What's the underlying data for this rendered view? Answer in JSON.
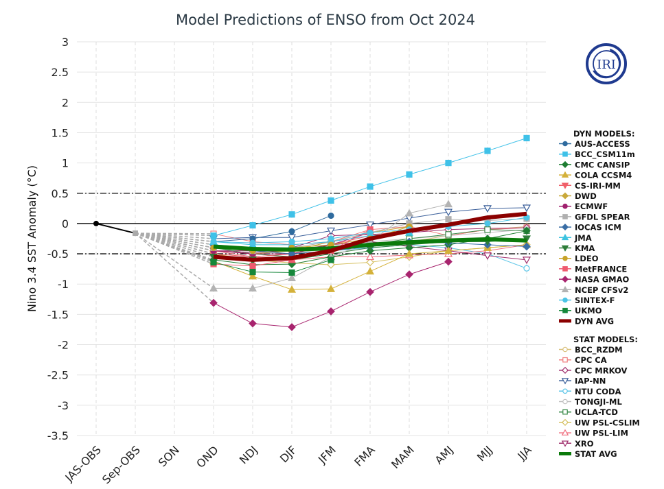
{
  "chart_data": {
    "type": "line",
    "title": "Model Predictions of ENSO from Oct 2024",
    "xlabel": "",
    "ylabel": "Nino 3.4 SST Anomaly (°C)",
    "categories": [
      "JAS-OBS",
      "Sep-OBS",
      "SON",
      "OND",
      "NDJ",
      "DJF",
      "JFM",
      "FMA",
      "MAM",
      "AMJ",
      "MJJ",
      "JJA"
    ],
    "forecast_categories": [
      "OND",
      "NDJ",
      "DJF",
      "JFM",
      "FMA",
      "MAM",
      "AMJ",
      "MJJ",
      "JJA"
    ],
    "ylim": [
      -3.5,
      3
    ],
    "yticks": [
      "3",
      "2.5",
      "2",
      "1.5",
      "1",
      "0.5",
      "0",
      "-0.5",
      "-1",
      "-1.5",
      "-2",
      "-2.5",
      "-3",
      "-3.5"
    ],
    "threshold_lines": [
      0.5,
      -0.5
    ],
    "grid": true,
    "legend_position": "right",
    "observed": {
      "x": [
        "JAS-OBS",
        "Sep-OBS"
      ],
      "values": [
        0.0,
        -0.16
      ],
      "color": "#000000"
    },
    "dyn_header": "DYN MODELS:",
    "stat_header": "STAT MODELS:",
    "dyn_series": [
      {
        "name": "AUS-ACCESS",
        "color": "#2f6b9e",
        "marker": "circle",
        "filled": true,
        "values": [
          -0.3,
          -0.25,
          -0.13,
          0.13,
          null,
          null,
          null,
          null,
          null
        ]
      },
      {
        "name": "BCC_CSM11m",
        "color": "#3fc1e8",
        "marker": "square",
        "filled": true,
        "values": [
          -0.2,
          -0.03,
          0.15,
          0.38,
          0.61,
          0.81,
          1.0,
          1.2,
          1.41
        ]
      },
      {
        "name": "CMC CANSIP",
        "color": "#1e7d32",
        "marker": "diamond",
        "filled": true,
        "values": [
          -0.6,
          -0.68,
          -0.67,
          -0.55,
          -0.45,
          -0.4,
          -0.35,
          -0.25,
          -0.12
        ]
      },
      {
        "name": "COLA CCSM4",
        "color": "#d4b13a",
        "marker": "triangle",
        "filled": true,
        "values": [
          -0.62,
          -0.87,
          -1.09,
          -1.08,
          -0.79,
          -0.5,
          -0.45,
          -0.4,
          -0.35
        ]
      },
      {
        "name": "CS-IRI-MM",
        "color": "#f0606a",
        "marker": "triangle-down",
        "filled": true,
        "values": [
          -0.5,
          -0.55,
          -0.5,
          -0.35,
          -0.2,
          -0.1,
          -0.05,
          null,
          null
        ]
      },
      {
        "name": "DWD",
        "color": "#c9a93a",
        "marker": "diamond",
        "filled": true,
        "values": [
          -0.45,
          -0.5,
          -0.45,
          -0.3,
          -0.15,
          -0.05,
          null,
          null,
          null
        ]
      },
      {
        "name": "ECMWF",
        "color": "#a0206e",
        "marker": "circle",
        "filled": true,
        "values": [
          -0.45,
          -0.5,
          -0.5,
          -0.35,
          -0.15,
          null,
          null,
          null,
          null
        ]
      },
      {
        "name": "GFDL SPEAR",
        "color": "#b0b0b0",
        "marker": "square",
        "filled": true,
        "values": [
          -0.4,
          -0.45,
          -0.4,
          -0.3,
          -0.15,
          0.0,
          0.07,
          0.05,
          0.08
        ]
      },
      {
        "name": "IOCAS ICM",
        "color": "#3a6ea5",
        "marker": "diamond",
        "filled": true,
        "values": [
          -0.35,
          -0.45,
          -0.5,
          -0.45,
          -0.38,
          -0.3,
          -0.32,
          -0.35,
          -0.38
        ]
      },
      {
        "name": "JMA",
        "color": "#3cc3e0",
        "marker": "triangle",
        "filled": true,
        "values": [
          -0.3,
          -0.35,
          -0.35,
          -0.3,
          -0.2,
          -0.15,
          null,
          null,
          null
        ]
      },
      {
        "name": "KMA",
        "color": "#2e7d3a",
        "marker": "triangle-down",
        "filled": true,
        "values": [
          -0.55,
          -0.6,
          -0.6,
          -0.5,
          -0.4,
          -0.35,
          -0.3,
          -0.3,
          -0.25
        ]
      },
      {
        "name": "LDEO",
        "color": "#c8a32a",
        "marker": "circle",
        "filled": true,
        "values": [
          -0.4,
          -0.45,
          -0.4,
          -0.35,
          -0.25,
          -0.05,
          null,
          null,
          null
        ]
      },
      {
        "name": "MetFRANCE",
        "color": "#ef5a6e",
        "marker": "square",
        "filled": true,
        "values": [
          -0.67,
          -0.7,
          -0.6,
          -0.45,
          -0.1,
          null,
          null,
          null,
          null
        ]
      },
      {
        "name": "NASA GMAO",
        "color": "#a8246e",
        "marker": "diamond",
        "filled": true,
        "values": [
          -1.31,
          -1.65,
          -1.71,
          -1.45,
          -1.13,
          -0.84,
          -0.63,
          null,
          null
        ]
      },
      {
        "name": "NCEP CFSv2",
        "color": "#b3b3b3",
        "marker": "triangle",
        "filled": true,
        "values": [
          -1.07,
          -1.07,
          -0.9,
          -0.55,
          -0.3,
          0.17,
          0.32,
          null,
          null
        ]
      },
      {
        "name": "SINTEX-F",
        "color": "#4cc4e6",
        "marker": "circle",
        "filled": true,
        "values": [
          -0.3,
          -0.32,
          -0.3,
          -0.25,
          -0.15,
          -0.1,
          -0.05,
          0.0,
          0.1
        ]
      },
      {
        "name": "UKMO",
        "color": "#15873a",
        "marker": "square",
        "filled": true,
        "values": [
          -0.64,
          -0.8,
          -0.81,
          -0.6,
          null,
          null,
          null,
          null,
          null
        ]
      },
      {
        "name": "DYN AVG",
        "color": "#8b0000",
        "marker": "none",
        "average": true,
        "values": [
          -0.55,
          -0.6,
          -0.57,
          -0.45,
          -0.25,
          -0.12,
          -0.02,
          0.1,
          0.16
        ]
      }
    ],
    "stat_series": [
      {
        "name": "BCC_RZDM",
        "color": "#d9c07a",
        "marker": "circle",
        "filled": false,
        "values": [
          -0.4,
          -0.45,
          -0.45,
          -0.4,
          -0.35,
          -0.3,
          -0.2,
          -0.1,
          -0.05
        ]
      },
      {
        "name": "CPC CA",
        "color": "#f08080",
        "marker": "square",
        "filled": false,
        "values": [
          -0.17,
          -0.3,
          -0.35,
          -0.3,
          -0.1,
          -0.05,
          -0.2,
          -0.1,
          -0.07
        ]
      },
      {
        "name": "CPC MRKOV",
        "color": "#a0306e",
        "marker": "diamond",
        "filled": false,
        "values": [
          -0.45,
          -0.45,
          -0.4,
          -0.2,
          -0.18,
          -0.15,
          -0.1,
          -0.08,
          -0.07
        ]
      },
      {
        "name": "IAP-NN",
        "color": "#3a5f9a",
        "marker": "triangle-down",
        "filled": false,
        "values": [
          -0.25,
          -0.23,
          -0.23,
          -0.12,
          -0.02,
          0.09,
          0.19,
          0.25,
          0.26
        ]
      },
      {
        "name": "NTU CODA",
        "color": "#5cc6e8",
        "marker": "circle",
        "filled": false,
        "values": [
          -0.35,
          -0.4,
          -0.42,
          -0.45,
          -0.4,
          -0.35,
          -0.4,
          -0.5,
          -0.74
        ]
      },
      {
        "name": "TONGJI-ML",
        "color": "#c0c0c0",
        "marker": "circle",
        "filled": false,
        "values": [
          -0.55,
          -0.55,
          -0.5,
          -0.4,
          -0.3,
          -0.25,
          -0.2,
          -0.15,
          -0.1
        ]
      },
      {
        "name": "UCLA-TCD",
        "color": "#3a8a4a",
        "marker": "square",
        "filled": false,
        "values": [
          -0.4,
          -0.5,
          -0.55,
          -0.45,
          -0.35,
          -0.25,
          -0.18,
          -0.1,
          -0.12
        ]
      },
      {
        "name": "UW PSL-CSLIM",
        "color": "#d6c060",
        "marker": "diamond",
        "filled": false,
        "values": [
          -0.5,
          -0.6,
          -0.65,
          -0.68,
          -0.64,
          -0.55,
          -0.45,
          -0.4,
          -0.35
        ]
      },
      {
        "name": "UW PSL-LIM",
        "color": "#f07080",
        "marker": "triangle",
        "filled": false,
        "values": [
          -0.45,
          -0.55,
          -0.6,
          -0.55,
          -0.55,
          -0.52,
          -0.5,
          -0.45,
          -0.35
        ]
      },
      {
        "name": "XRO",
        "color": "#a0306e",
        "marker": "triangle-down",
        "filled": false,
        "values": [
          -0.45,
          -0.48,
          -0.45,
          -0.35,
          -0.3,
          -0.38,
          -0.45,
          -0.53,
          -0.6
        ]
      },
      {
        "name": "STAT AVG",
        "color": "#0a7a0a",
        "marker": "none",
        "average": true,
        "values": [
          -0.38,
          -0.42,
          -0.43,
          -0.41,
          -0.35,
          -0.31,
          -0.28,
          -0.26,
          -0.28
        ]
      }
    ]
  },
  "logo": {
    "text": "IRI",
    "color": "#1f3a8f"
  }
}
